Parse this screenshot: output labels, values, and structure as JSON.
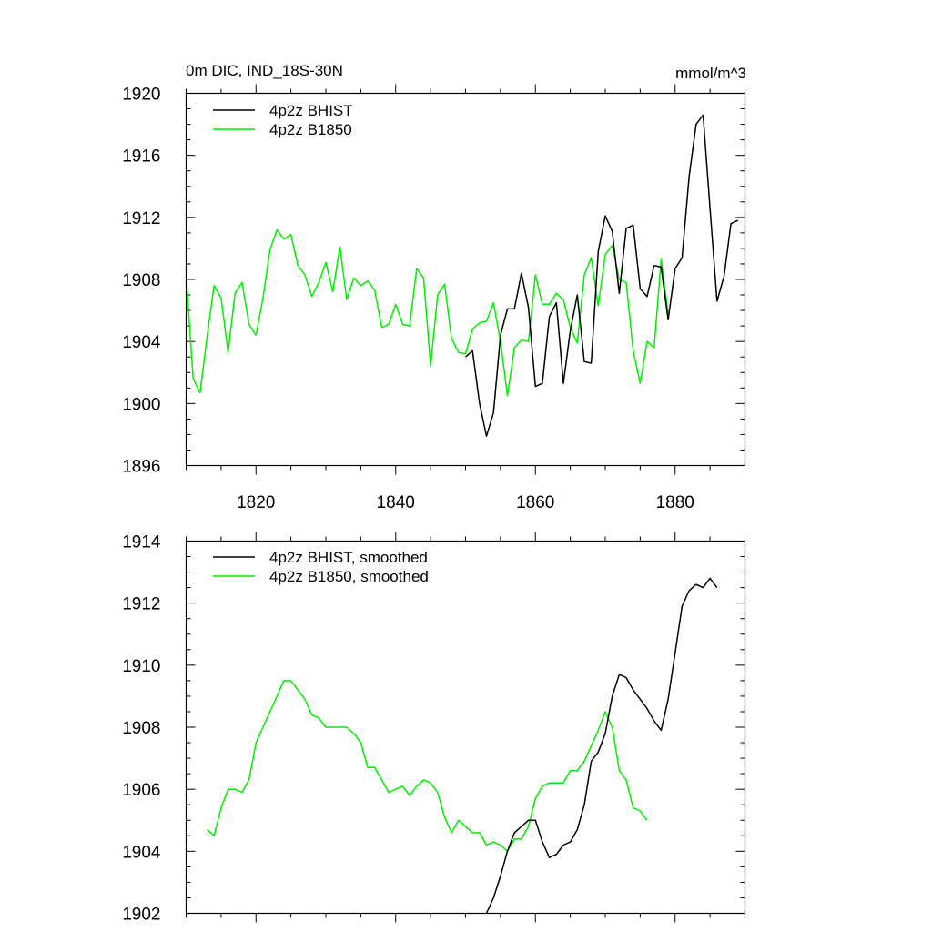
{
  "chart_data": [
    {
      "type": "line",
      "title": "0m DIC, IND_18S-30N",
      "units": "mmol/m^3",
      "xlabel": "",
      "ylabel": "",
      "xlim": [
        1810,
        1890
      ],
      "ylim": [
        1896,
        1920
      ],
      "x_ticks": [
        1820,
        1840,
        1860,
        1880
      ],
      "y_ticks": [
        1896,
        1900,
        1904,
        1908,
        1912,
        1916,
        1920
      ],
      "legend_position": "top-left",
      "series": [
        {
          "name": "4p2z B1850",
          "color": "#00ee00",
          "x": [
            1810,
            1811,
            1812,
            1813,
            1814,
            1815,
            1816,
            1817,
            1818,
            1819,
            1820,
            1821,
            1822,
            1823,
            1824,
            1825,
            1826,
            1827,
            1828,
            1829,
            1830,
            1831,
            1832,
            1833,
            1834,
            1835,
            1836,
            1837,
            1838,
            1839,
            1840,
            1841,
            1842,
            1843,
            1844,
            1845,
            1846,
            1847,
            1848,
            1849,
            1850,
            1851,
            1852,
            1853,
            1854,
            1855,
            1856,
            1857,
            1858,
            1859,
            1860,
            1861,
            1862,
            1863,
            1864,
            1865,
            1866,
            1867,
            1868,
            1869,
            1870,
            1871,
            1872,
            1873,
            1874,
            1875,
            1876,
            1877,
            1878,
            1879
          ],
          "values": [
            1908.3,
            1901.6,
            1900.7,
            1904.3,
            1907.6,
            1906.8,
            1903.3,
            1907.1,
            1907.8,
            1905.1,
            1904.4,
            1906.8,
            1909.9,
            1911.2,
            1910.6,
            1910.9,
            1908.9,
            1908.3,
            1906.9,
            1907.8,
            1909.1,
            1907.2,
            1910.1,
            1906.7,
            1908.1,
            1907.6,
            1907.9,
            1907.3,
            1904.9,
            1905.1,
            1906.4,
            1905.1,
            1905.0,
            1908.7,
            1908.1,
            1902.4,
            1907.0,
            1907.7,
            1904.2,
            1903.3,
            1903.2,
            1904.8,
            1905.2,
            1905.3,
            1906.5,
            1904.0,
            1900.5,
            1903.6,
            1904.1,
            1904.0,
            1908.3,
            1906.4,
            1906.4,
            1907.1,
            1906.7,
            1904.9,
            1903.9,
            1908.3,
            1909.4,
            1906.3,
            1909.6,
            1910.2,
            1908.0,
            1907.8,
            1903.4,
            1901.3,
            1904.0,
            1903.6,
            1909.3,
            1905.8
          ]
        },
        {
          "name": "4p2z BHIST",
          "color": "#000000",
          "x": [
            1850,
            1851,
            1852,
            1853,
            1854,
            1855,
            1856,
            1857,
            1858,
            1859,
            1860,
            1861,
            1862,
            1863,
            1864,
            1865,
            1866,
            1867,
            1868,
            1869,
            1870,
            1871,
            1872,
            1873,
            1874,
            1875,
            1876,
            1877,
            1878,
            1879,
            1880,
            1881,
            1882,
            1883,
            1884,
            1885,
            1886,
            1887,
            1888,
            1889
          ],
          "values": [
            1903.0,
            1903.4,
            1900.0,
            1897.9,
            1899.4,
            1904.4,
            1906.1,
            1906.1,
            1908.4,
            1906.2,
            1901.1,
            1901.3,
            1905.6,
            1906.5,
            1901.3,
            1904.7,
            1907.0,
            1902.7,
            1902.6,
            1909.8,
            1912.1,
            1911.1,
            1907.1,
            1911.3,
            1911.5,
            1907.4,
            1906.9,
            1908.9,
            1908.8,
            1905.4,
            1908.7,
            1909.4,
            1914.6,
            1918.0,
            1918.6,
            1912.6,
            1906.6,
            1908.2,
            1911.6,
            1911.8
          ]
        }
      ]
    },
    {
      "type": "line",
      "title": "",
      "xlabel": "",
      "ylabel": "",
      "xlim": [
        1810,
        1890
      ],
      "ylim": [
        1902,
        1914
      ],
      "x_ticks": [
        1820,
        1840,
        1860,
        1880
      ],
      "y_ticks": [
        1902,
        1904,
        1906,
        1908,
        1910,
        1912,
        1914
      ],
      "legend_position": "top-left",
      "series": [
        {
          "name": "4p2z B1850, smoothed",
          "color": "#00ee00",
          "x": [
            1813,
            1814,
            1815,
            1816,
            1817,
            1818,
            1819,
            1820,
            1821,
            1822,
            1823,
            1824,
            1825,
            1826,
            1827,
            1828,
            1829,
            1830,
            1831,
            1832,
            1833,
            1834,
            1835,
            1836,
            1837,
            1838,
            1839,
            1840,
            1841,
            1842,
            1843,
            1844,
            1845,
            1846,
            1847,
            1848,
            1849,
            1850,
            1851,
            1852,
            1853,
            1854,
            1855,
            1856,
            1857,
            1858,
            1859,
            1860,
            1861,
            1862,
            1863,
            1864,
            1865,
            1866,
            1867,
            1868,
            1869,
            1870,
            1871,
            1872,
            1873,
            1874,
            1875,
            1876
          ],
          "values": [
            1904.7,
            1904.5,
            1905.4,
            1906.0,
            1906.0,
            1905.9,
            1906.3,
            1907.5,
            1908.0,
            1908.5,
            1909.0,
            1909.5,
            1909.5,
            1909.2,
            1908.9,
            1908.4,
            1908.3,
            1908.0,
            1908.0,
            1908.0,
            1908.0,
            1907.8,
            1907.5,
            1906.7,
            1906.7,
            1906.3,
            1905.9,
            1906.0,
            1906.1,
            1905.8,
            1906.1,
            1906.3,
            1906.2,
            1905.9,
            1905.1,
            1904.6,
            1905.0,
            1904.8,
            1904.6,
            1904.6,
            1904.2,
            1904.3,
            1904.2,
            1904.0,
            1904.4,
            1904.4,
            1904.8,
            1905.7,
            1906.1,
            1906.2,
            1906.2,
            1906.2,
            1906.6,
            1906.6,
            1906.9,
            1907.4,
            1907.9,
            1908.5,
            1908.0,
            1906.6,
            1906.3,
            1905.4,
            1905.3,
            1905.0
          ]
        },
        {
          "name": "4p2z BHIST, smoothed",
          "color": "#000000",
          "x": [
            1853,
            1854,
            1855,
            1856,
            1857,
            1858,
            1859,
            1860,
            1861,
            1862,
            1863,
            1864,
            1865,
            1866,
            1867,
            1868,
            1869,
            1870,
            1871,
            1872,
            1873,
            1874,
            1875,
            1876,
            1877,
            1878,
            1879,
            1880,
            1881,
            1882,
            1883,
            1884,
            1885,
            1886
          ],
          "values": [
            1902.0,
            1902.5,
            1903.2,
            1904.0,
            1904.6,
            1904.8,
            1905.0,
            1905.0,
            1904.3,
            1903.8,
            1903.9,
            1904.2,
            1904.3,
            1904.7,
            1905.5,
            1906.9,
            1907.2,
            1907.8,
            1909.0,
            1909.7,
            1909.6,
            1909.2,
            1908.9,
            1908.6,
            1908.2,
            1907.9,
            1908.9,
            1910.4,
            1911.9,
            1912.4,
            1912.6,
            1912.5,
            1912.8,
            1912.5
          ]
        }
      ]
    }
  ]
}
